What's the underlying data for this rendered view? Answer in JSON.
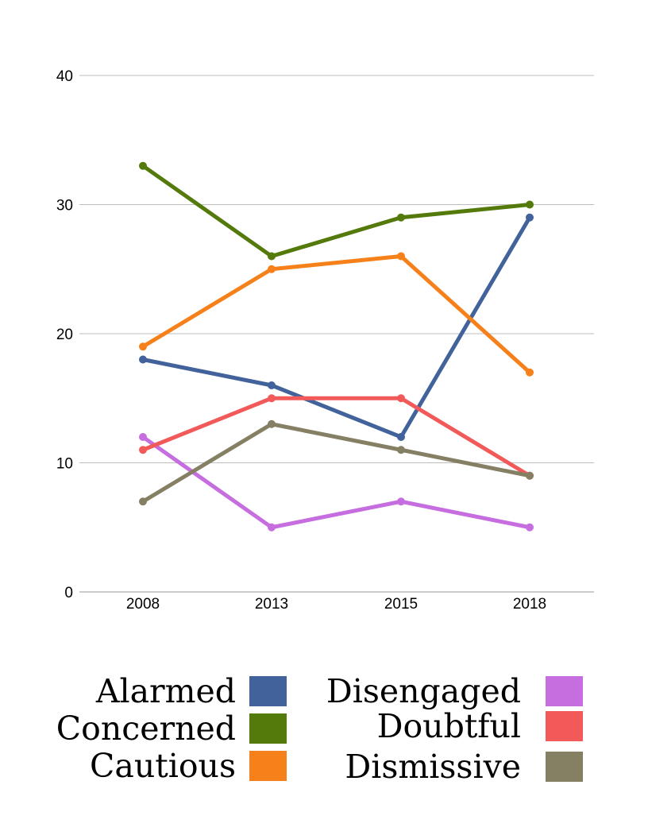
{
  "chart_data": {
    "type": "line",
    "title": "",
    "xlabel": "",
    "ylabel": "",
    "categories": [
      "2008",
      "2013",
      "2015",
      "2018"
    ],
    "ylim": [
      0,
      40
    ],
    "yticks": [
      0,
      10,
      20,
      30,
      40
    ],
    "grid": true,
    "legend_position": "bottom",
    "series": [
      {
        "name": "Alarmed",
        "color": "#42629b",
        "values": [
          18,
          16,
          12,
          29
        ]
      },
      {
        "name": "Concerned",
        "color": "#557a0c",
        "values": [
          33,
          26,
          29,
          30
        ]
      },
      {
        "name": "Cautious",
        "color": "#f6801a",
        "values": [
          19,
          25,
          26,
          17
        ]
      },
      {
        "name": "Disengaged",
        "color": "#c66ee0",
        "values": [
          12,
          5,
          7,
          5
        ]
      },
      {
        "name": "Doubtful",
        "color": "#f25a5a",
        "values": [
          11,
          15,
          15,
          9
        ]
      },
      {
        "name": "Dismissive",
        "color": "#857f63",
        "values": [
          7,
          13,
          11,
          9
        ]
      }
    ]
  }
}
